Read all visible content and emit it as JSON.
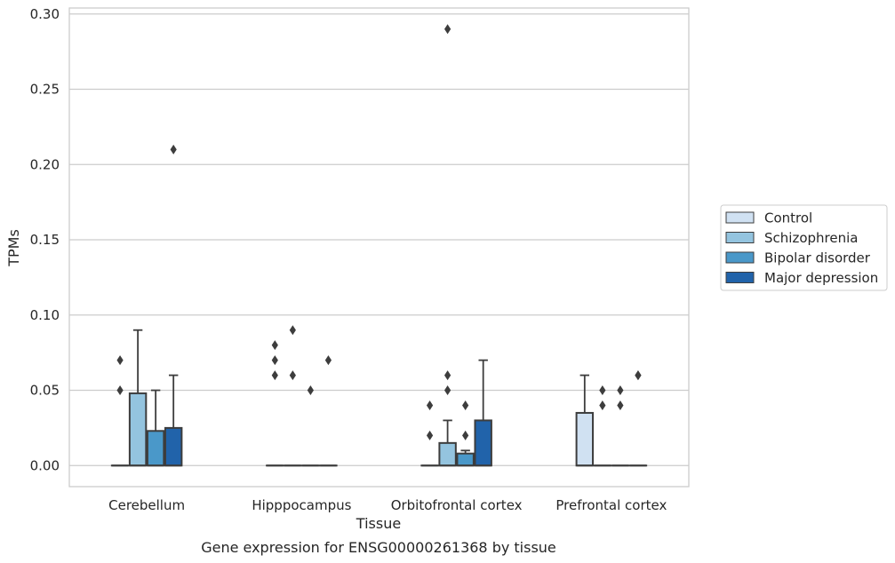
{
  "chart_data": {
    "type": "box",
    "title": "",
    "caption": "Gene expression for ENSG00000261368 by tissue",
    "xlabel": "Tissue",
    "ylabel": "TPMs",
    "ylim": [
      -0.014,
      0.304
    ],
    "yticks": [
      "0.00",
      "0.05",
      "0.10",
      "0.15",
      "0.20",
      "0.25",
      "0.30"
    ],
    "grid": "horizontal",
    "legend_position": "right",
    "categories": [
      "Cerebellum",
      "Hipppocampus",
      "Orbitofrontal cortex",
      "Prefrontal cortex"
    ],
    "series": [
      {
        "name": "Control",
        "color": "#d0e1f2",
        "boxes": [
          {
            "q1": 0,
            "median": 0,
            "q3": 0,
            "whisker_low": 0,
            "whisker_high": 0,
            "outliers": [
              0.05,
              0.07
            ]
          },
          {
            "q1": 0,
            "median": 0,
            "q3": 0,
            "whisker_low": 0,
            "whisker_high": 0,
            "outliers": [
              0.06,
              0.07,
              0.08
            ]
          },
          {
            "q1": 0,
            "median": 0,
            "q3": 0,
            "whisker_low": 0,
            "whisker_high": 0,
            "outliers": [
              0.02,
              0.04
            ]
          },
          {
            "q1": 0,
            "median": 0,
            "q3": 0.035,
            "whisker_low": 0,
            "whisker_high": 0.06,
            "outliers": []
          }
        ]
      },
      {
        "name": "Schizophrenia",
        "color": "#94c4df",
        "boxes": [
          {
            "q1": 0,
            "median": 0,
            "q3": 0.048,
            "whisker_low": 0,
            "whisker_high": 0.09,
            "outliers": []
          },
          {
            "q1": 0,
            "median": 0,
            "q3": 0,
            "whisker_low": 0,
            "whisker_high": 0,
            "outliers": [
              0.06,
              0.09
            ]
          },
          {
            "q1": 0,
            "median": 0,
            "q3": 0.015,
            "whisker_low": 0,
            "whisker_high": 0.03,
            "outliers": [
              0.05,
              0.06,
              0.29
            ]
          },
          {
            "q1": 0,
            "median": 0,
            "q3": 0,
            "whisker_low": 0,
            "whisker_high": 0,
            "outliers": [
              0.04,
              0.05
            ]
          }
        ]
      },
      {
        "name": "Bipolar disorder",
        "color": "#4a98c9",
        "boxes": [
          {
            "q1": 0,
            "median": 0,
            "q3": 0.023,
            "whisker_low": 0,
            "whisker_high": 0.05,
            "outliers": []
          },
          {
            "q1": 0,
            "median": 0,
            "q3": 0,
            "whisker_low": 0,
            "whisker_high": 0,
            "outliers": [
              0.05
            ]
          },
          {
            "q1": 0,
            "median": 0,
            "q3": 0.008,
            "whisker_low": 0,
            "whisker_high": 0.01,
            "outliers": [
              0.02,
              0.04
            ]
          },
          {
            "q1": 0,
            "median": 0,
            "q3": 0,
            "whisker_low": 0,
            "whisker_high": 0,
            "outliers": [
              0.04,
              0.05
            ]
          }
        ]
      },
      {
        "name": "Major depression",
        "color": "#2163aa",
        "boxes": [
          {
            "q1": 0,
            "median": 0,
            "q3": 0.025,
            "whisker_low": 0,
            "whisker_high": 0.06,
            "outliers": [
              0.21
            ]
          },
          {
            "q1": 0,
            "median": 0,
            "q3": 0,
            "whisker_low": 0,
            "whisker_high": 0,
            "outliers": [
              0.07
            ]
          },
          {
            "q1": 0,
            "median": 0,
            "q3": 0.03,
            "whisker_low": 0,
            "whisker_high": 0.07,
            "outliers": []
          },
          {
            "q1": 0,
            "median": 0,
            "q3": 0,
            "whisker_low": 0,
            "whisker_high": 0,
            "outliers": [
              0.06,
              0.06
            ]
          }
        ]
      }
    ]
  }
}
